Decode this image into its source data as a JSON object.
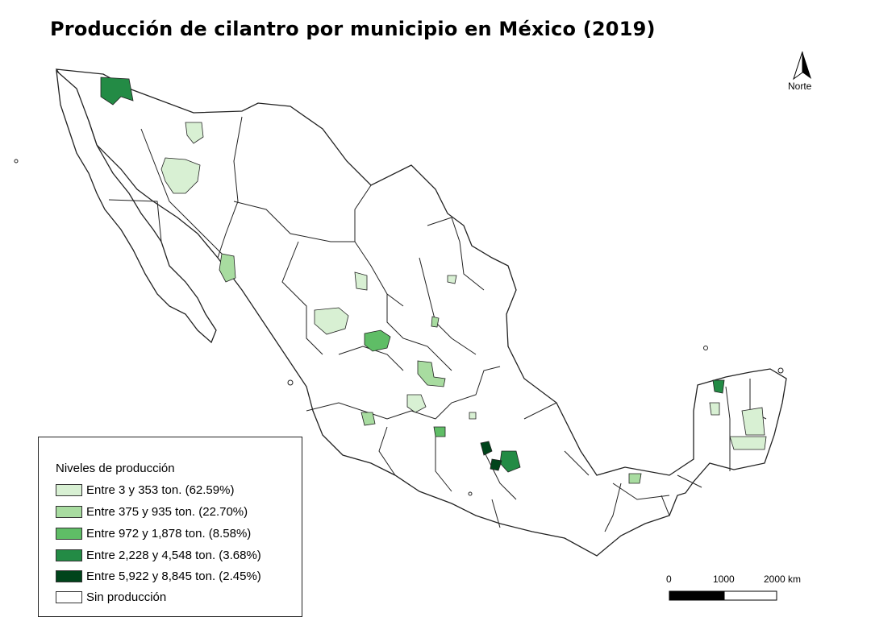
{
  "title": "Producción de cilantro por municipio en México (2019)",
  "north_label": "Norte",
  "legend": {
    "title": "Niveles de producción",
    "items": [
      {
        "label": "Entre 3 y 353 ton. (62.59%)",
        "color": "#d8f0d3"
      },
      {
        "label": "Entre 375 y 935 ton. (22.70%)",
        "color": "#a8dca0"
      },
      {
        "label": "Entre 972 y 1,878 ton. (8.58%)",
        "color": "#5fbd66"
      },
      {
        "label": "Entre 2,228 y 4,548 ton. (3.68%)",
        "color": "#238b45"
      },
      {
        "label": "Entre 5,922 y 8,845 ton. (2.45%)",
        "color": "#00441b"
      },
      {
        "label": "Sin producción",
        "color": "#ffffff"
      }
    ]
  },
  "scale": {
    "labels": [
      "0",
      "1000",
      "2000 km"
    ]
  }
}
